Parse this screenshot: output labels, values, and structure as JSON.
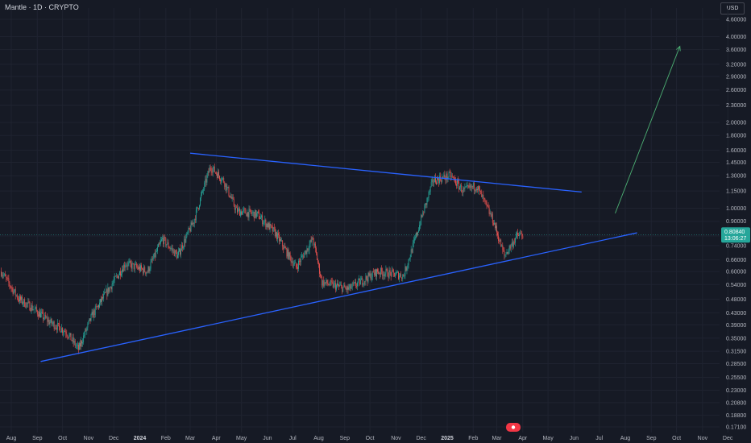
{
  "header": {
    "title": "Mantle · 1D · CRYPTO",
    "currency": "USD"
  },
  "colors": {
    "background": "#161a25",
    "grid": "#1f2330",
    "up": "#26a69a",
    "down": "#ef5350",
    "trendline": "#2962ff",
    "arrow": "#4caf73",
    "last_price_bg": "#26a69a"
  },
  "price_tag": {
    "price": "0.80840",
    "countdown": "13:06:27",
    "level_label": "0.74000"
  },
  "chart_data": {
    "type": "candlestick",
    "title": "Mantle · 1D · CRYPTO",
    "y_scale": "log",
    "ylim": [
      0.16,
      4.9
    ],
    "y_ticks": [
      "4.60000",
      "4.00000",
      "3.60000",
      "3.20000",
      "2.90000",
      "2.60000",
      "2.30000",
      "2.00000",
      "1.80000",
      "1.60000",
      "1.45000",
      "1.30000",
      "1.15000",
      "1.00000",
      "0.90000",
      "0.80000",
      "0.74000",
      "0.66000",
      "0.60000",
      "0.54000",
      "0.48000",
      "0.43000",
      "0.39000",
      "0.35000",
      "0.31500",
      "0.28500",
      "0.25500",
      "0.23000",
      "0.20800",
      "0.18800",
      "0.17100"
    ],
    "x_ticks": [
      "Aug",
      "Sep",
      "Oct",
      "Nov",
      "Dec",
      "2024",
      "Feb",
      "Mar",
      "Apr",
      "May",
      "Jun",
      "Jul",
      "Aug",
      "Sep",
      "Oct",
      "Nov",
      "Dec",
      "2025",
      "Feb",
      "Mar",
      "Apr",
      "May",
      "Jun",
      "Jul",
      "Aug",
      "Sep",
      "Oct",
      "Nov",
      "Dec"
    ],
    "x_range": [
      "2023-07-10",
      "2025-12-31"
    ],
    "last_price": 0.8084,
    "price_path": [
      [
        "2023-07-20",
        0.6
      ],
      [
        "2023-08-10",
        0.48
      ],
      [
        "2023-08-25",
        0.45
      ],
      [
        "2023-09-15",
        0.4
      ],
      [
        "2023-10-05",
        0.37
      ],
      [
        "2023-10-20",
        0.32
      ],
      [
        "2023-11-05",
        0.42
      ],
      [
        "2023-11-25",
        0.52
      ],
      [
        "2023-12-15",
        0.64
      ],
      [
        "2024-01-10",
        0.6
      ],
      [
        "2024-01-28",
        0.78
      ],
      [
        "2024-02-15",
        0.68
      ],
      [
        "2024-03-05",
        0.9
      ],
      [
        "2024-03-25",
        1.4
      ],
      [
        "2024-04-10",
        1.25
      ],
      [
        "2024-04-25",
        0.98
      ],
      [
        "2024-05-20",
        0.95
      ],
      [
        "2024-06-10",
        0.82
      ],
      [
        "2024-07-05",
        0.62
      ],
      [
        "2024-07-25",
        0.78
      ],
      [
        "2024-08-05",
        0.55
      ],
      [
        "2024-09-05",
        0.52
      ],
      [
        "2024-10-10",
        0.6
      ],
      [
        "2024-11-10",
        0.58
      ],
      [
        "2024-11-25",
        0.8
      ],
      [
        "2024-12-15",
        1.25
      ],
      [
        "2025-01-05",
        1.3
      ],
      [
        "2025-01-20",
        1.15
      ],
      [
        "2025-02-05",
        1.2
      ],
      [
        "2025-02-25",
        0.9
      ],
      [
        "2025-03-10",
        0.68
      ],
      [
        "2025-03-25",
        0.8
      ],
      [
        "2025-04-01",
        0.81
      ]
    ],
    "drawings": [
      {
        "type": "trendline",
        "name": "upper-trendline",
        "from": [
          "2024-03-01",
          1.56
        ],
        "to": [
          "2025-06-10",
          1.14
        ]
      },
      {
        "type": "trendline",
        "name": "lower-trendline",
        "from": [
          "2023-09-05",
          0.29
        ],
        "to": [
          "2025-08-15",
          0.82
        ]
      },
      {
        "type": "arrow",
        "name": "projection-arrow",
        "from": [
          "2025-07-20",
          0.96
        ],
        "to": [
          "2025-10-05",
          3.7
        ]
      }
    ]
  }
}
